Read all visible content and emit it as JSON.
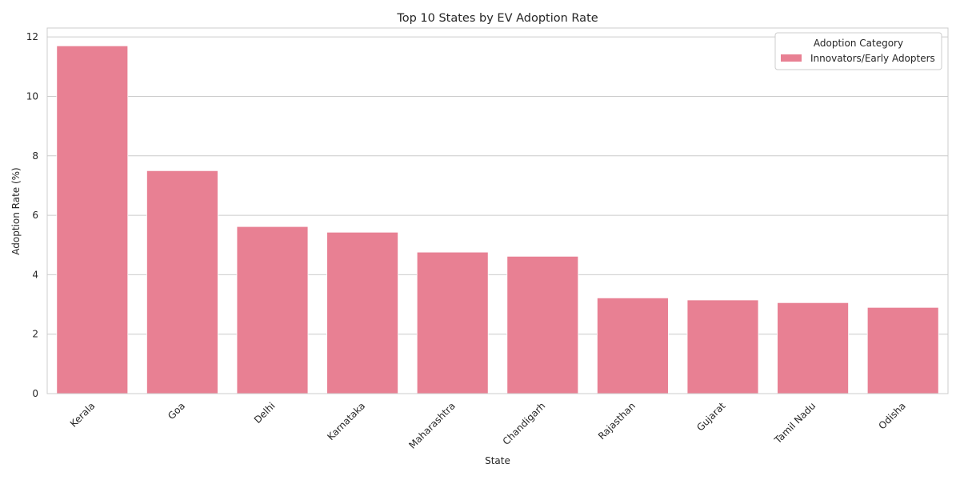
{
  "chart_data": {
    "type": "bar",
    "title": "Top 10 States by EV Adoption Rate",
    "xlabel": "State",
    "ylabel": "Adoption Rate (%)",
    "categories": [
      "Kerala",
      "Goa",
      "Delhi",
      "Karnataka",
      "Maharashtra",
      "Chandigarh",
      "Rajasthan",
      "Gujarat",
      "Tamil Nadu",
      "Odisha"
    ],
    "series": [
      {
        "name": "Innovators/Early Adopters",
        "values": [
          11.7,
          7.5,
          5.62,
          5.43,
          4.76,
          4.62,
          3.22,
          3.15,
          3.06,
          2.9
        ]
      }
    ],
    "ylim": [
      0,
      12.3
    ],
    "yticks": [
      0,
      2,
      4,
      6,
      8,
      10,
      12
    ],
    "grid": "y",
    "legend": {
      "title": "Adoption Category",
      "position": "top-right"
    },
    "colors": {
      "bar": "#e88093",
      "grid": "#cccccc",
      "spine": "#cccccc",
      "text": "#262626"
    }
  }
}
